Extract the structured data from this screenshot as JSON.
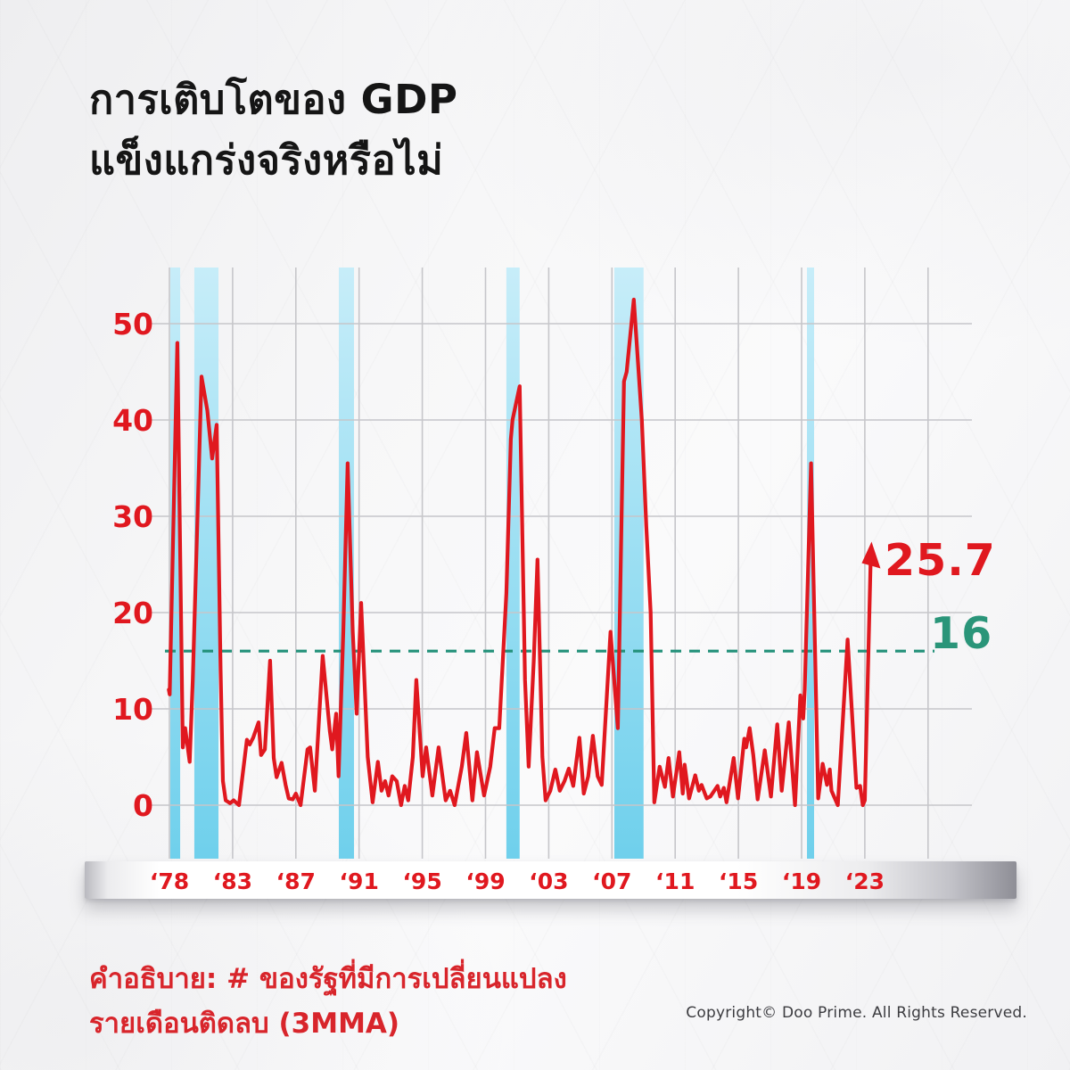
{
  "title": {
    "line1": "การเติบโตของ GDP",
    "line2": "แข็งแกร่งจริงหรือไม่"
  },
  "caption": {
    "line1": "คำอธิบาย:  # ของรัฐที่มีการเปลี่ยนแปลง",
    "line2": "รายเดือนติดลบ (3MMA)"
  },
  "copyright": "Copyright© Doo Prime. All Rights Reserved.",
  "annotations": {
    "latest_value": "25.7",
    "threshold_value": "16"
  },
  "colors": {
    "series_red": "#e0181f",
    "axis_label_red": "#e0181f",
    "threshold_teal": "#23917a",
    "band_blue_top": "#c7edf9",
    "band_blue_bottom": "#6fd0ec",
    "gridline_gray": "#c6c6ca",
    "title_black": "#151515",
    "caption_red": "#d8252b"
  },
  "chart_data": {
    "type": "line",
    "title": "",
    "xlabel": "",
    "ylabel": "",
    "ylim": [
      0,
      55.8
    ],
    "grid": true,
    "y_ticks": [
      0,
      10,
      20,
      30,
      40,
      50
    ],
    "x_ticks": [
      {
        "label": "‘78",
        "year": 1978
      },
      {
        "label": "‘83",
        "year": 1983
      },
      {
        "label": "‘87",
        "year": 1987
      },
      {
        "label": "‘91",
        "year": 1991
      },
      {
        "label": "‘95",
        "year": 1995
      },
      {
        "label": "‘99",
        "year": 1999
      },
      {
        "label": "‘03",
        "year": 2003
      },
      {
        "label": "‘07",
        "year": 2007
      },
      {
        "label": "‘11",
        "year": 2011
      },
      {
        "label": "‘15",
        "year": 2015
      },
      {
        "label": "‘19",
        "year": 2019
      },
      {
        "label": "‘23",
        "year": 2023
      },
      {
        "label": "",
        "year": 2027
      }
    ],
    "threshold": 16,
    "latest": 25.7,
    "recession_bands": [
      [
        1978.07,
        1978.85
      ],
      [
        1979.97,
        1981.88
      ],
      [
        1989.72,
        1990.68
      ],
      [
        2000.32,
        2001.16
      ],
      [
        2007.15,
        2009.0
      ],
      [
        2019.34,
        2019.79
      ]
    ],
    "series": [
      {
        "name": "# of states with negative monthly change (3MMA)",
        "points": [
          [
            1977.95,
            12
          ],
          [
            1978.02,
            11.5
          ],
          [
            1978.63,
            48
          ],
          [
            1979.06,
            6
          ],
          [
            1979.25,
            8
          ],
          [
            1979.6,
            4.5
          ],
          [
            1979.85,
            13
          ],
          [
            1980.54,
            44.5
          ],
          [
            1981.0,
            41
          ],
          [
            1981.38,
            36
          ],
          [
            1981.74,
            39.5
          ],
          [
            1982.05,
            14
          ],
          [
            1982.23,
            2.5
          ],
          [
            1982.45,
            0.5
          ],
          [
            1982.8,
            0.2
          ],
          [
            1983.06,
            0.5
          ],
          [
            1983.4,
            0
          ],
          [
            1983.9,
            6.8
          ],
          [
            1984.08,
            6.3
          ],
          [
            1984.3,
            7
          ],
          [
            1984.64,
            8.6
          ],
          [
            1984.8,
            5.2
          ],
          [
            1985.04,
            5.8
          ],
          [
            1985.37,
            15
          ],
          [
            1985.6,
            4.9
          ],
          [
            1985.78,
            2.9
          ],
          [
            1986.1,
            4.4
          ],
          [
            1986.35,
            2.1
          ],
          [
            1986.55,
            0.7
          ],
          [
            1986.8,
            0.6
          ],
          [
            1987.0,
            1.2
          ],
          [
            1987.3,
            0
          ],
          [
            1987.74,
            5.8
          ],
          [
            1987.9,
            6
          ],
          [
            1988.2,
            1.5
          ],
          [
            1988.7,
            15.5
          ],
          [
            1989.15,
            7.7
          ],
          [
            1989.3,
            5.8
          ],
          [
            1989.55,
            9.5
          ],
          [
            1989.7,
            3
          ],
          [
            1990.0,
            18
          ],
          [
            1990.28,
            35.5
          ],
          [
            1990.6,
            18
          ],
          [
            1990.85,
            9.5
          ],
          [
            1991.13,
            21
          ],
          [
            1991.55,
            5
          ],
          [
            1991.86,
            0.3
          ],
          [
            1992.19,
            4.5
          ],
          [
            1992.42,
            1.5
          ],
          [
            1992.65,
            2.5
          ],
          [
            1992.87,
            1
          ],
          [
            1993.1,
            3
          ],
          [
            1993.38,
            2.5
          ],
          [
            1993.66,
            0
          ],
          [
            1993.89,
            2
          ],
          [
            1994.11,
            0.5
          ],
          [
            1994.4,
            5
          ],
          [
            1994.62,
            13
          ],
          [
            1995.02,
            3
          ],
          [
            1995.24,
            6
          ],
          [
            1995.64,
            1
          ],
          [
            1996.03,
            6
          ],
          [
            1996.48,
            0.5
          ],
          [
            1996.76,
            1.5
          ],
          [
            1997.05,
            0
          ],
          [
            1997.5,
            4
          ],
          [
            1997.78,
            7.5
          ],
          [
            1998.17,
            0.5
          ],
          [
            1998.46,
            5.5
          ],
          [
            1998.91,
            1
          ],
          [
            1999.3,
            4
          ],
          [
            1999.58,
            8
          ],
          [
            1999.87,
            8
          ],
          [
            2000.32,
            22
          ],
          [
            2000.6,
            38
          ],
          [
            2000.71,
            40
          ],
          [
            2001.16,
            43.5
          ],
          [
            2001.5,
            13
          ],
          [
            2001.73,
            4
          ],
          [
            2002.05,
            15
          ],
          [
            2002.29,
            25.5
          ],
          [
            2002.6,
            5
          ],
          [
            2002.8,
            0.5
          ],
          [
            2003.1,
            1.5
          ],
          [
            2003.42,
            3.7
          ],
          [
            2003.7,
            1.5
          ],
          [
            2004.0,
            2.5
          ],
          [
            2004.27,
            3.8
          ],
          [
            2004.55,
            2
          ],
          [
            2004.94,
            7
          ],
          [
            2005.22,
            1.2
          ],
          [
            2005.5,
            3
          ],
          [
            2005.79,
            7.2
          ],
          [
            2006.1,
            3
          ],
          [
            2006.35,
            2.1
          ],
          [
            2006.91,
            18
          ],
          [
            2007.37,
            8
          ],
          [
            2007.76,
            44
          ],
          [
            2007.93,
            45
          ],
          [
            2008.38,
            52.5
          ],
          [
            2008.89,
            40
          ],
          [
            2009.17,
            29
          ],
          [
            2009.45,
            20
          ],
          [
            2009.68,
            0.3
          ],
          [
            2010.02,
            4
          ],
          [
            2010.35,
            1.9
          ],
          [
            2010.58,
            4.9
          ],
          [
            2010.86,
            0.9
          ],
          [
            2011.26,
            5.5
          ],
          [
            2011.48,
            1.2
          ],
          [
            2011.6,
            4.2
          ],
          [
            2011.88,
            0.7
          ],
          [
            2012.27,
            3.1
          ],
          [
            2012.5,
            1.5
          ],
          [
            2012.67,
            2.1
          ],
          [
            2013.0,
            0.7
          ],
          [
            2013.23,
            0.9
          ],
          [
            2013.68,
            2
          ],
          [
            2013.85,
            0.9
          ],
          [
            2014.08,
            1.8
          ],
          [
            2014.25,
            0.3
          ],
          [
            2014.7,
            4.9
          ],
          [
            2014.98,
            0.7
          ],
          [
            2015.37,
            6.9
          ],
          [
            2015.49,
            6
          ],
          [
            2015.71,
            8
          ],
          [
            2015.94,
            5.2
          ],
          [
            2016.22,
            0.6
          ],
          [
            2016.67,
            5.7
          ],
          [
            2017.06,
            0.9
          ],
          [
            2017.46,
            8.4
          ],
          [
            2017.74,
            1.5
          ],
          [
            2018.19,
            8.6
          ],
          [
            2018.58,
            0
          ],
          [
            2018.92,
            11.4
          ],
          [
            2019.1,
            9
          ],
          [
            2019.2,
            12
          ],
          [
            2019.6,
            35.5
          ],
          [
            2020.05,
            0.7
          ],
          [
            2020.33,
            4.3
          ],
          [
            2020.61,
            2.1
          ],
          [
            2020.78,
            3.7
          ],
          [
            2020.89,
            1.5
          ],
          [
            2021.29,
            0
          ],
          [
            2021.91,
            17.2
          ],
          [
            2022.47,
            1.8
          ],
          [
            2022.7,
            2
          ],
          [
            2022.87,
            0
          ],
          [
            2023.0,
            0.5
          ],
          [
            2023.37,
            25.7
          ]
        ]
      }
    ]
  }
}
